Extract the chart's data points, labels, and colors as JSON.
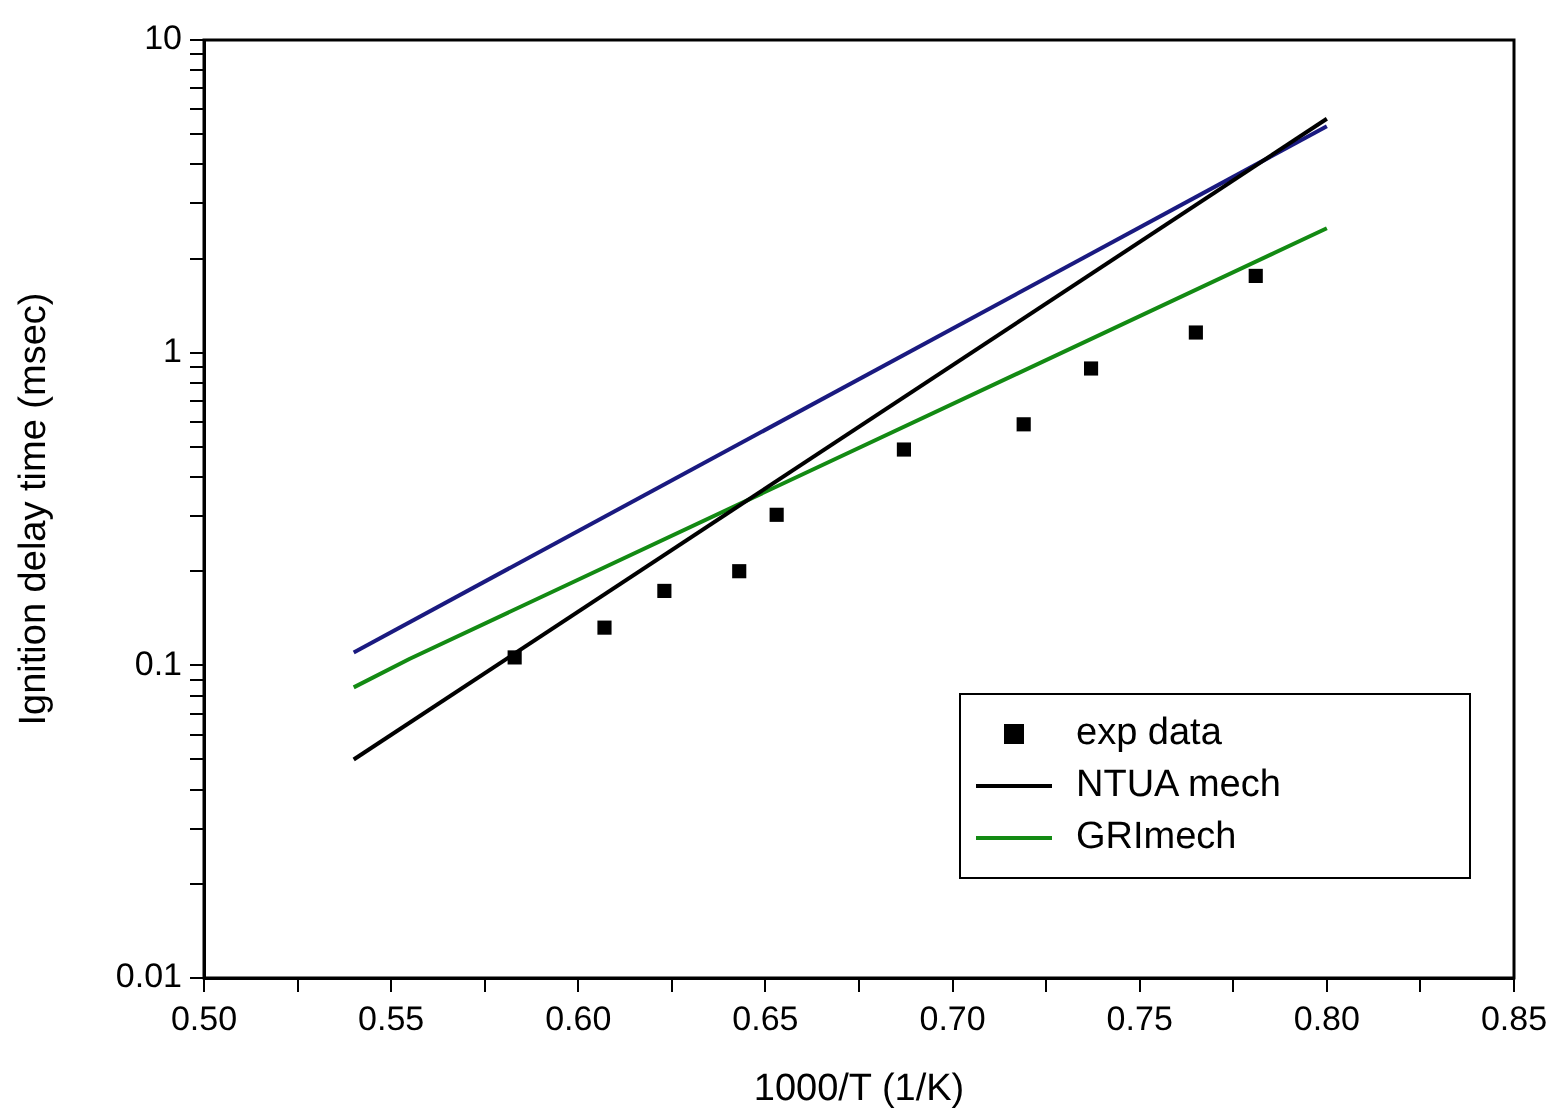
{
  "chart_data": {
    "type": "scatter",
    "xlabel": "1000/T (1/K)",
    "ylabel": "Ignition delay time (msec)",
    "log": "y",
    "grid": false,
    "legend": "bottom right",
    "xlim": [
      0.5,
      0.85
    ],
    "ylim": [
      0.01,
      10
    ],
    "xticks": [
      {
        "value": 0.5,
        "label": "0.50"
      },
      {
        "value": 0.525,
        "label": null
      },
      {
        "value": 0.55,
        "label": "0.55"
      },
      {
        "value": 0.575,
        "label": null
      },
      {
        "value": 0.6,
        "label": "0.60"
      },
      {
        "value": 0.625,
        "label": null
      },
      {
        "value": 0.65,
        "label": "0.65"
      },
      {
        "value": 0.675,
        "label": null
      },
      {
        "value": 0.7,
        "label": "0.70"
      },
      {
        "value": 0.725,
        "label": null
      },
      {
        "value": 0.75,
        "label": "0.75"
      },
      {
        "value": 0.775,
        "label": null
      },
      {
        "value": 0.8,
        "label": "0.80"
      },
      {
        "value": 0.825,
        "label": null
      },
      0.85
    ],
    "yticks": [
      0.01,
      {
        "value": 0.02,
        "label": null
      },
      {
        "value": 0.03,
        "label": null
      },
      {
        "value": 0.04,
        "label": null
      },
      {
        "value": 0.05,
        "label": null
      },
      {
        "value": 0.06,
        "label": null
      },
      {
        "value": 0.07,
        "label": null
      },
      {
        "value": 0.08,
        "label": null
      },
      {
        "value": 0.09,
        "label": null
      },
      0.1,
      {
        "value": 0.2,
        "label": null
      },
      {
        "value": 0.3,
        "label": null
      },
      {
        "value": 0.4,
        "label": null
      },
      {
        "value": 0.5,
        "label": null
      },
      {
        "value": 0.6,
        "label": null
      },
      {
        "value": 0.7,
        "label": null
      },
      {
        "value": 0.8,
        "label": null
      },
      {
        "value": 0.9,
        "label": null
      },
      1,
      {
        "value": 2,
        "label": null
      },
      {
        "value": 3,
        "label": null
      },
      {
        "value": 4,
        "label": null
      },
      {
        "value": 5,
        "label": null
      },
      {
        "value": 6,
        "label": null
      },
      {
        "value": 7,
        "label": null
      },
      {
        "value": 8,
        "label": null
      },
      {
        "value": 9,
        "label": null
      },
      10
    ],
    "series": [
      {
        "name": "exp data",
        "type": "scatter",
        "marker": "square",
        "color": "#000000",
        "x": [
          0.583,
          0.607,
          0.623,
          0.643,
          0.653,
          0.687,
          0.719,
          0.737,
          0.765,
          0.781
        ],
        "values": [
          0.106,
          0.132,
          0.173,
          0.2,
          0.303,
          0.49,
          0.59,
          0.89,
          1.16,
          1.76
        ]
      },
      {
        "name": "NTUA mech",
        "type": "line",
        "marker": "none",
        "color": "#000000",
        "x": [
          0.54,
          0.8
        ],
        "values": [
          0.05,
          5.6
        ]
      },
      {
        "type": "line",
        "marker": "none",
        "color": "#1a1a80",
        "x": [
          0.54,
          0.8
        ],
        "values": [
          0.11,
          5.3
        ]
      },
      {
        "name": "GRImech",
        "type": "line",
        "marker": "none",
        "color": "#138a13",
        "x": [
          0.54,
          0.555,
          0.8
        ],
        "values": [
          0.085,
          0.105,
          2.5
        ]
      }
    ]
  }
}
